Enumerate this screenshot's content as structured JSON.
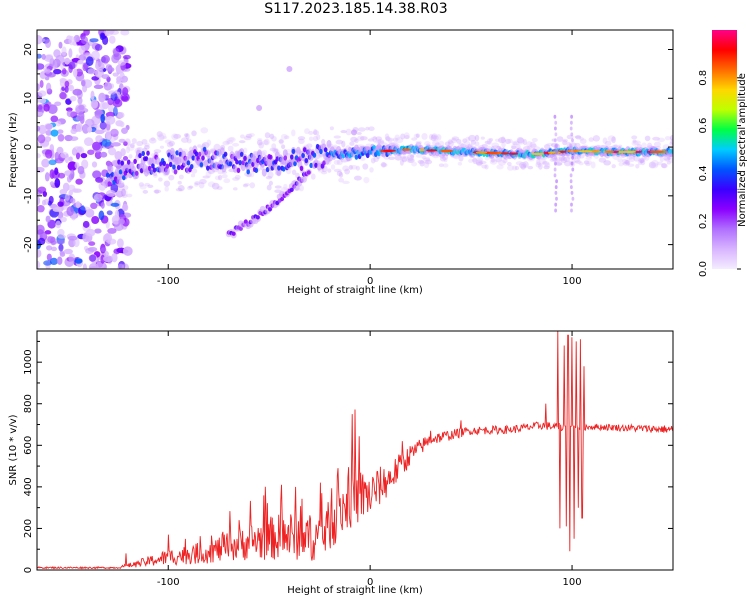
{
  "title": "S117.2023.185.14.38.R03",
  "chart_data": [
    {
      "type": "heatmap",
      "title": "S117.2023.185.14.38.R03",
      "xlabel": "Height of straight line (km)",
      "ylabel": "Frequency (Hz)",
      "xlim": [
        -165,
        150
      ],
      "ylim": [
        -25,
        24
      ],
      "xticks": [
        -100,
        0,
        100
      ],
      "yticks": [
        -20,
        -10,
        0,
        10,
        20
      ],
      "colorbar": {
        "label": "Normalized spectral amplitude",
        "range": [
          0.0,
          1.0
        ],
        "ticks": [
          0.0,
          0.2,
          0.4,
          0.6,
          0.8
        ],
        "colormap": [
          "#f4ecff",
          "#d8b4ff",
          "#b070ff",
          "#8b00ff",
          "#3a00ff",
          "#0055ff",
          "#00ccff",
          "#00ff44",
          "#bfff00",
          "#ffd700",
          "#ff6a00",
          "#ff0000",
          "#ff0088"
        ]
      },
      "ridge": [
        {
          "x": -130,
          "f": -6
        },
        {
          "x": -115,
          "f": -3.5
        },
        {
          "x": -100,
          "f": -3
        },
        {
          "x": -80,
          "f": -2.5
        },
        {
          "x": -60,
          "f": -3
        },
        {
          "x": -40,
          "f": -3.2
        },
        {
          "x": -20,
          "f": -1.5
        },
        {
          "x": 0,
          "f": -1
        },
        {
          "x": 20,
          "f": -0.5
        },
        {
          "x": 60,
          "f": -1.2
        },
        {
          "x": 80,
          "f": -1.5
        },
        {
          "x": 100,
          "f": -0.8
        },
        {
          "x": 120,
          "f": -1
        },
        {
          "x": 150,
          "f": -1
        }
      ],
      "branch": [
        {
          "x": -70,
          "f": -18
        },
        {
          "x": -55,
          "f": -14
        },
        {
          "x": -40,
          "f": -9
        },
        {
          "x": -30,
          "f": -5
        }
      ]
    },
    {
      "type": "line",
      "xlabel": "Height of straight line (km)",
      "ylabel": "SNR (10 * v/v)",
      "xlim": [
        -165,
        150
      ],
      "ylim": [
        0,
        1150
      ],
      "xticks": [
        -100,
        0,
        100
      ],
      "yticks": [
        0,
        200,
        400,
        600,
        800,
        1000
      ],
      "color": "#ee2222",
      "envelope": [
        {
          "x": -165,
          "base": 10,
          "amp": 8
        },
        {
          "x": -125,
          "base": 10,
          "amp": 8
        },
        {
          "x": -115,
          "base": 25,
          "amp": 35
        },
        {
          "x": -100,
          "base": 50,
          "amp": 80
        },
        {
          "x": -80,
          "base": 70,
          "amp": 110
        },
        {
          "x": -60,
          "base": 110,
          "amp": 180
        },
        {
          "x": -40,
          "base": 130,
          "amp": 240
        },
        {
          "x": -25,
          "base": 120,
          "amp": 220
        },
        {
          "x": -10,
          "base": 300,
          "amp": 300
        },
        {
          "x": 0,
          "base": 330,
          "amp": 220
        },
        {
          "x": 10,
          "base": 420,
          "amp": 160
        },
        {
          "x": 20,
          "base": 540,
          "amp": 100
        },
        {
          "x": 30,
          "base": 620,
          "amp": 60
        },
        {
          "x": 50,
          "base": 665,
          "amp": 40
        },
        {
          "x": 70,
          "base": 670,
          "amp": 40
        },
        {
          "x": 85,
          "base": 690,
          "amp": 40
        },
        {
          "x": 95,
          "base": 680,
          "amp": 40
        },
        {
          "x": 110,
          "base": 685,
          "amp": 30
        },
        {
          "x": 150,
          "base": 670,
          "amp": 40
        }
      ],
      "spikes": [
        {
          "x": -121,
          "y": 80
        },
        {
          "x": -100,
          "y": 170
        },
        {
          "x": -65,
          "y": 240
        },
        {
          "x": -44,
          "y": 410
        },
        {
          "x": -37,
          "y": 400
        },
        {
          "x": -24,
          "y": 370
        },
        {
          "x": -16,
          "y": 490
        },
        {
          "x": -9,
          "y": 750
        },
        {
          "x": 16,
          "y": 620
        },
        {
          "x": 30,
          "y": 670
        },
        {
          "x": 45,
          "y": 720
        },
        {
          "x": 87,
          "y": 800
        },
        {
          "x": 93,
          "y": 1150
        },
        {
          "x": 94,
          "y": 200
        },
        {
          "x": 96,
          "y": 1080
        },
        {
          "x": 97,
          "y": 210
        },
        {
          "x": 98,
          "y": 1130
        },
        {
          "x": 99,
          "y": 90
        },
        {
          "x": 100,
          "y": 1120
        },
        {
          "x": 101,
          "y": 150
        },
        {
          "x": 102,
          "y": 1100
        },
        {
          "x": 103,
          "y": 300
        },
        {
          "x": 104,
          "y": 1110
        },
        {
          "x": 105,
          "y": 250
        },
        {
          "x": 106,
          "y": 980
        }
      ]
    }
  ]
}
